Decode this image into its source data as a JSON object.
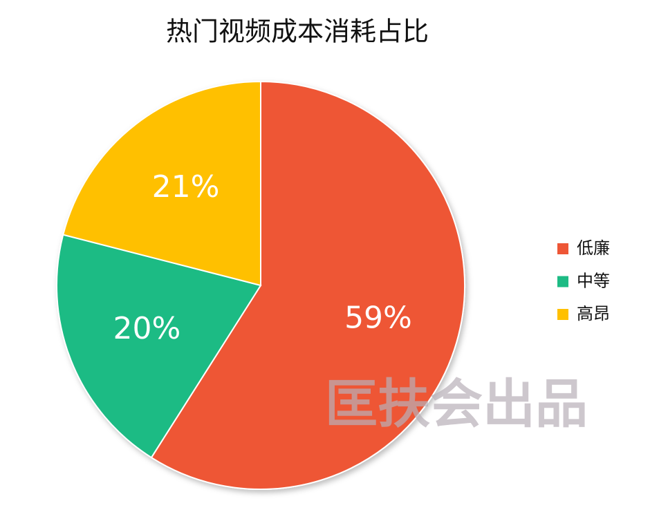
{
  "chart_data": {
    "type": "pie",
    "title": "热门视频成本消耗占比",
    "categories": [
      "低廉",
      "中等",
      "高昂"
    ],
    "values": [
      59,
      20,
      21
    ],
    "value_labels": [
      "59%",
      "20%",
      "21%"
    ],
    "colors": [
      "#ee5636",
      "#1dbb84",
      "#ffc000"
    ],
    "legend": "right"
  },
  "watermark": "匡扶会出品"
}
